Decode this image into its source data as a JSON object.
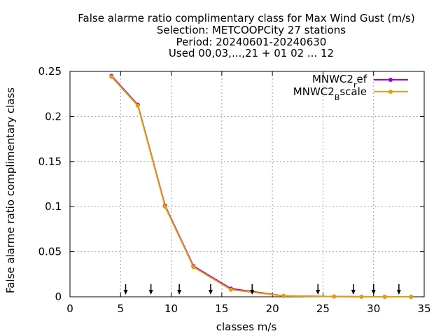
{
  "chart_data": {
    "type": "line",
    "title_lines": [
      "False alarme ratio complimentary class  for Max Wind Gust (m/s)",
      "Selection: METCOOPCity     27 stations",
      "Period: 20240601-20240630",
      "Used 00,03,...,21 + 01 02 ... 12"
    ],
    "xlabel": "classes m/s",
    "ylabel": "False alarme ratio complimentary class",
    "xlim": [
      0,
      35
    ],
    "ylim": [
      0,
      0.25
    ],
    "xticks": [
      0,
      5,
      10,
      15,
      20,
      25,
      30,
      35
    ],
    "xtick_labels": [
      "0",
      "5",
      "10",
      "15",
      "20",
      "25",
      "30",
      "35"
    ],
    "yticks": [
      0,
      0.05,
      0.1,
      0.15,
      0.2,
      0.25
    ],
    "ytick_labels": [
      "0",
      "0.05",
      "0.1",
      "0.15",
      "0.2",
      "0.25"
    ],
    "grid": true,
    "legend_position": "top-right",
    "series": [
      {
        "name": "MNWC2",
        "name_sub": "r",
        "name_rest": "ef",
        "color": "#9400d3",
        "x": [
          4.1,
          6.7,
          9.4,
          12.2,
          15.9,
          21.1,
          26.1,
          28.8,
          31.1,
          33.7
        ],
        "y": [
          0.245,
          0.213,
          0.101,
          0.034,
          0.009,
          0.001,
          0.0003,
          0.0001,
          0.0,
          0.0
        ]
      },
      {
        "name": "MNWC2",
        "name_sub": "B",
        "name_rest": "scale",
        "color": "#e69f00",
        "x": [
          4.1,
          6.7,
          9.4,
          12.2,
          15.9,
          21.1,
          26.1,
          28.8,
          31.1,
          33.7
        ],
        "y": [
          0.244,
          0.212,
          0.1,
          0.033,
          0.008,
          0.001,
          0.0003,
          0.0001,
          0.0,
          0.0
        ]
      }
    ],
    "annotation_arrows_x": [
      5.5,
      8.0,
      10.8,
      13.9,
      18.0,
      24.5,
      28.0,
      30.0,
      32.5
    ]
  }
}
